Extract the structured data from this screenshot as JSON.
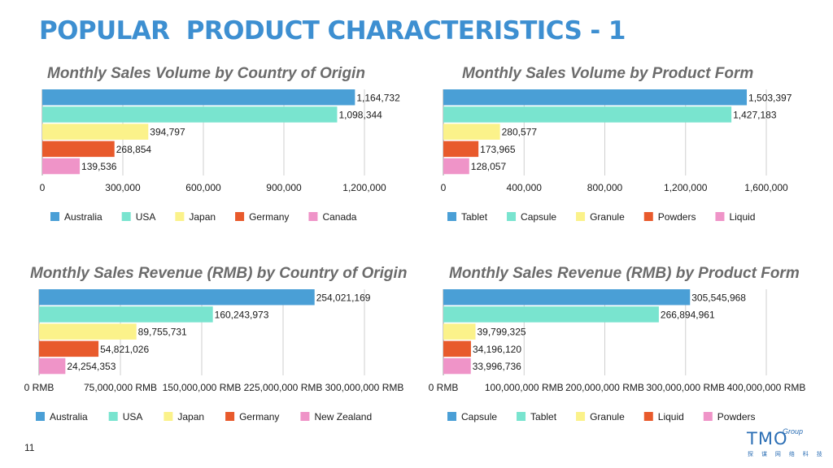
{
  "title": "POPULAR  PRODUCT CHARACTERISTICS - 1",
  "page_number": "11",
  "logo": {
    "text": "TMO",
    "suffix": "Group",
    "subtitle": "探 谋 网 络 科 技"
  },
  "colors": {
    "title": "#3d8fd1",
    "series": [
      "#4a9fd6",
      "#79e4cf",
      "#fbf28a",
      "#e85a2c",
      "#ef94c8"
    ]
  },
  "chart_data": [
    {
      "type": "bar",
      "orientation": "horizontal",
      "title": "Monthly Sales Volume by Country of Origin",
      "categories": [
        "Australia",
        "USA",
        "Japan",
        "Germany",
        "Canada"
      ],
      "values": [
        1164732,
        1098344,
        394797,
        268854,
        139536
      ],
      "value_labels": [
        "1,164,732",
        "1,098,344",
        "394,797",
        "268,854",
        "139,536"
      ],
      "xlim": [
        0,
        1200000
      ],
      "ticks": [
        0,
        300000,
        600000,
        900000,
        1200000
      ],
      "tick_labels": [
        "0",
        "300,000",
        "600,000",
        "900,000",
        "1,200,000"
      ],
      "grid": true,
      "legend": "bottom"
    },
    {
      "type": "bar",
      "orientation": "horizontal",
      "title": "Monthly Sales Volume by Product Form",
      "categories": [
        "Tablet",
        "Capsule",
        "Granule",
        "Powders",
        "Liquid"
      ],
      "values": [
        1503397,
        1427183,
        280577,
        173965,
        128057
      ],
      "value_labels": [
        "1,503,397",
        "1,427,183",
        "280,577",
        "173,965",
        "128,057"
      ],
      "xlim": [
        0,
        1600000
      ],
      "ticks": [
        0,
        400000,
        800000,
        1200000,
        1600000
      ],
      "tick_labels": [
        "0",
        "400,000",
        "800,000",
        "1,200,000",
        "1,600,000"
      ],
      "grid": true,
      "legend": "bottom"
    },
    {
      "type": "bar",
      "orientation": "horizontal",
      "title": "Monthly Sales Revenue (RMB) by Country of Origin",
      "categories": [
        "Australia",
        "USA",
        "Japan",
        "Germany",
        "New Zealand"
      ],
      "values": [
        254021169,
        160243973,
        89755731,
        54821026,
        24254353
      ],
      "value_labels": [
        "254,021,169",
        "160,243,973",
        "89,755,731",
        "54,821,026",
        "24,254,353"
      ],
      "xlim": [
        0,
        300000000
      ],
      "ticks": [
        0,
        75000000,
        150000000,
        225000000,
        300000000
      ],
      "tick_labels": [
        "0 RMB",
        "75,000,000 RMB",
        "150,000,000 RMB",
        "225,000,000 RMB",
        "300,000,000 RMB"
      ],
      "grid": true,
      "legend": "bottom"
    },
    {
      "type": "bar",
      "orientation": "horizontal",
      "title": "Monthly Sales Revenue (RMB) by Product Form",
      "categories": [
        "Capsule",
        "Tablet",
        "Granule",
        "Liquid",
        "Powders"
      ],
      "values": [
        305545968,
        266894961,
        39799325,
        34196120,
        33996736
      ],
      "value_labels": [
        "305,545,968",
        "266,894,961",
        "39,799,325",
        "34,196,120",
        "33,996,736"
      ],
      "xlim": [
        0,
        400000000
      ],
      "ticks": [
        0,
        100000000,
        200000000,
        300000000,
        400000000
      ],
      "tick_labels": [
        "0 RMB",
        "100,000,000 RMB",
        "200,000,000 RMB",
        "300,000,000 RMB",
        "400,000,000 RMB"
      ],
      "grid": true,
      "legend": "bottom"
    }
  ]
}
